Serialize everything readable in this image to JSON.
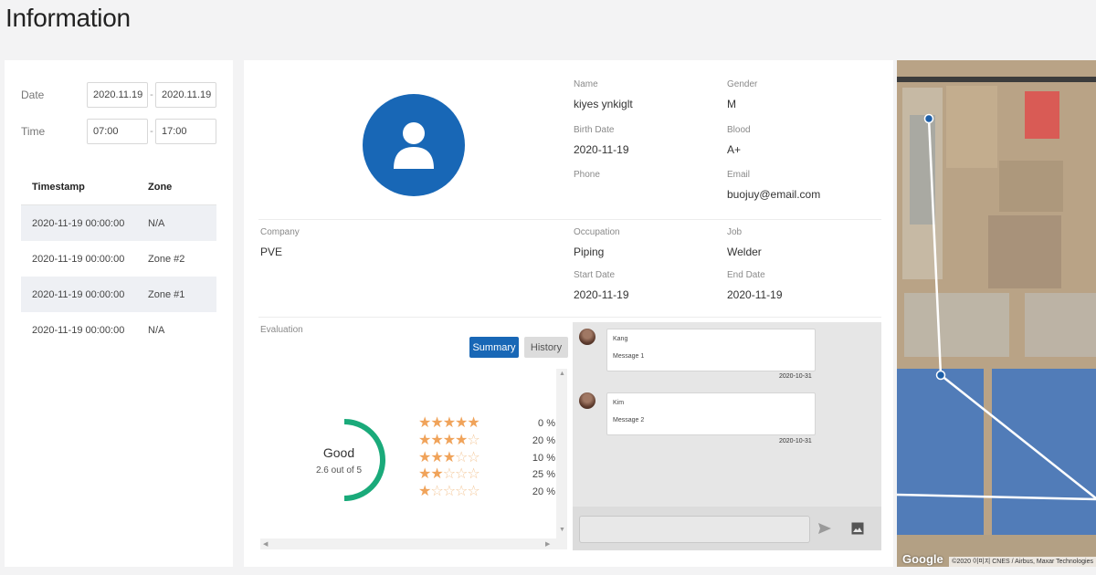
{
  "page": {
    "title": "Information"
  },
  "filters": {
    "date_label": "Date",
    "date_from": "2020.11.19",
    "date_to": "2020.11.19",
    "time_label": "Time",
    "time_from": "07:00",
    "time_to": "17:00",
    "separator": "-"
  },
  "timestamp_table": {
    "headers": [
      "Timestamp",
      "Zone"
    ],
    "rows": [
      [
        "2020-11-19 00:00:00",
        "N/A"
      ],
      [
        "2020-11-19 00:00:00",
        "Zone #2"
      ],
      [
        "2020-11-19 00:00:00",
        "Zone #1"
      ],
      [
        "2020-11-19 00:00:00",
        "N/A"
      ]
    ]
  },
  "profile": {
    "name_label": "Name",
    "name": "kiyes ynkiglt",
    "gender_label": "Gender",
    "gender": "M",
    "birth_label": "Birth Date",
    "birth": "2020-11-19",
    "blood_label": "Blood",
    "blood": "A+",
    "phone_label": "Phone",
    "phone": "",
    "email_label": "Email",
    "email": "buojuy@email.com",
    "company_label": "Company",
    "company": "PVE",
    "occupation_label": "Occupation",
    "occupation": "Piping",
    "job_label": "Job",
    "job": "Welder",
    "start_label": "Start Date",
    "start": "2020-11-19",
    "end_label": "End Date",
    "end": "2020-11-19"
  },
  "evaluation": {
    "label": "Evaluation",
    "summary_button": "Summary",
    "history_button": "History",
    "rating_word": "Good",
    "rating_text": "2.6 out of 5",
    "rating_value": 2.6,
    "rating_max": 5,
    "accent_color": "#1aaa7a",
    "star_color": "#f0a35a",
    "distribution": [
      {
        "stars": 5,
        "percent": "0 %"
      },
      {
        "stars": 4,
        "percent": "20 %"
      },
      {
        "stars": 3,
        "percent": "10 %"
      },
      {
        "stars": 2,
        "percent": "25 %"
      },
      {
        "stars": 1,
        "percent": "20 %"
      }
    ]
  },
  "chat": {
    "messages": [
      {
        "author": "Kang",
        "text": "Message 1",
        "date": "2020-10-31"
      },
      {
        "author": "Kim",
        "text": "Message 2",
        "date": "2020-10-31"
      }
    ],
    "input_placeholder": "",
    "send_icon": "send-icon",
    "image_icon": "image-icon"
  },
  "map": {
    "logo": "Google",
    "credit": "©2020 이미지 CNES / Airbus, Maxar Technologies",
    "zone_color": "#2f6fc8"
  },
  "theme": {
    "primary": "#1867b6",
    "panel_bg": "#ffffff",
    "page_bg": "#f3f3f4"
  }
}
